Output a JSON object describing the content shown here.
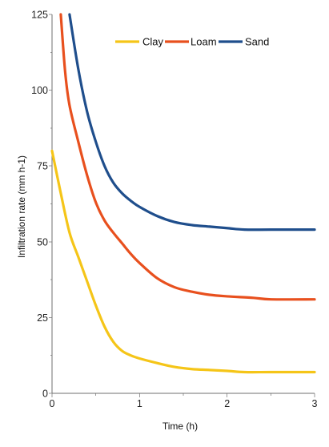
{
  "chart_data": {
    "type": "line",
    "title": "",
    "xlabel": "Time (h)",
    "ylabel": "Infiltration rate (mm h-1)",
    "xlim": [
      0,
      3
    ],
    "ylim": [
      0,
      125
    ],
    "x_ticks": [
      0,
      1,
      2,
      3
    ],
    "y_ticks": [
      0,
      25,
      50,
      75,
      100,
      125
    ],
    "grid": false,
    "legend_position": "top",
    "series": [
      {
        "name": "Clay",
        "color": "#f5c518",
        "x": [
          0,
          0.1,
          0.2,
          0.3,
          0.4,
          0.5,
          0.6,
          0.7,
          0.8,
          0.9,
          1.0,
          1.2,
          1.4,
          1.6,
          1.8,
          2.0,
          2.2,
          2.5,
          3.0
        ],
        "y": [
          80,
          66,
          53,
          45,
          37,
          29,
          22,
          17,
          14,
          12.5,
          11.5,
          10,
          8.7,
          8,
          7.7,
          7.4,
          7,
          7,
          7
        ]
      },
      {
        "name": "Loam",
        "color": "#e8501e",
        "x": [
          0.1,
          0.15,
          0.2,
          0.3,
          0.4,
          0.5,
          0.6,
          0.7,
          0.8,
          0.9,
          1.0,
          1.2,
          1.4,
          1.6,
          1.8,
          2.0,
          2.3,
          2.5,
          3.0
        ],
        "y": [
          125,
          106,
          95,
          83,
          72,
          63,
          57,
          53,
          49.5,
          46,
          43,
          38,
          35,
          33.5,
          32.5,
          32,
          31.5,
          31,
          31
        ]
      },
      {
        "name": "Sand",
        "color": "#1f4e8c",
        "x": [
          0.2,
          0.3,
          0.4,
          0.5,
          0.6,
          0.7,
          0.8,
          0.9,
          1.0,
          1.2,
          1.4,
          1.6,
          1.8,
          2.0,
          2.2,
          2.5,
          3.0
        ],
        "y": [
          125,
          107,
          93,
          83,
          75,
          69.5,
          66,
          63.5,
          61.5,
          58.5,
          56.5,
          55.5,
          55,
          54.5,
          54,
          54,
          54
        ]
      }
    ]
  }
}
